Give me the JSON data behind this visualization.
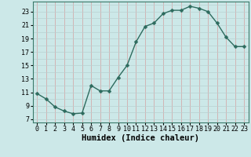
{
  "x": [
    0,
    1,
    2,
    3,
    4,
    5,
    6,
    7,
    8,
    9,
    10,
    11,
    12,
    13,
    14,
    15,
    16,
    17,
    18,
    19,
    20,
    21,
    22,
    23
  ],
  "y": [
    10.8,
    10.0,
    8.8,
    8.2,
    7.8,
    7.9,
    12.0,
    11.2,
    11.2,
    13.2,
    15.0,
    18.5,
    20.8,
    21.3,
    22.7,
    23.2,
    23.2,
    23.8,
    23.5,
    23.0,
    21.3,
    19.2,
    17.8,
    17.8
  ],
  "line_color": "#2d6b5e",
  "marker": "D",
  "marker_size": 2.5,
  "bg_color": "#cce8e8",
  "grid_vertical_color": "#d4a0a0",
  "grid_horizontal_color": "#b8d0d0",
  "xlabel": "Humidex (Indice chaleur)",
  "xlim": [
    -0.5,
    23.5
  ],
  "ylim": [
    6.5,
    24.5
  ],
  "yticks": [
    7,
    9,
    11,
    13,
    15,
    17,
    19,
    21,
    23
  ],
  "xticks": [
    0,
    1,
    2,
    3,
    4,
    5,
    6,
    7,
    8,
    9,
    10,
    11,
    12,
    13,
    14,
    15,
    16,
    17,
    18,
    19,
    20,
    21,
    22,
    23
  ],
  "xlabel_fontsize": 7.5,
  "tick_fontsize": 6
}
